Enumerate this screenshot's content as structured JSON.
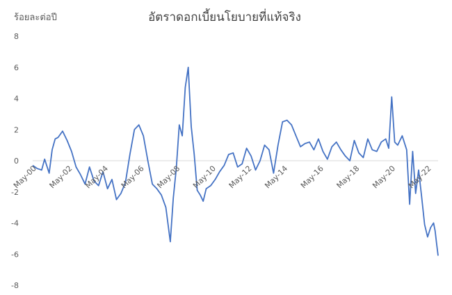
{
  "chart_data": {
    "type": "line",
    "title": "อัตราดอกเบี้ยนโยบายที่แท้จริง",
    "ylabel": "ร้อยละต่อปี",
    "xlabel": "",
    "ylim": [
      -8,
      8
    ],
    "yticks": [
      -8,
      -6,
      -4,
      -2,
      0,
      2,
      4,
      6,
      8
    ],
    "xlim": [
      "2000-05",
      "2022-12"
    ],
    "xticks": [
      "May-00",
      "May-02",
      "May-04",
      "May-06",
      "May-08",
      "May-10",
      "May-12",
      "May-14",
      "May-16",
      "May-18",
      "May-20",
      "May-22"
    ],
    "grid": false,
    "legend": "none",
    "series": [
      {
        "color": "#4472C4",
        "x": [
          "2000-05",
          "2000-08",
          "2000-11",
          "2001-01",
          "2001-04",
          "2001-06",
          "2001-08",
          "2001-10",
          "2002-01",
          "2002-04",
          "2002-07",
          "2002-10",
          "2003-01",
          "2003-04",
          "2003-07",
          "2003-10",
          "2004-01",
          "2004-04",
          "2004-07",
          "2004-10",
          "2005-01",
          "2005-04",
          "2005-07",
          "2005-10",
          "2006-01",
          "2006-04",
          "2006-07",
          "2006-10",
          "2007-01",
          "2007-04",
          "2007-07",
          "2007-10",
          "2008-01",
          "2008-03",
          "2008-05",
          "2008-07",
          "2008-09",
          "2008-11",
          "2009-01",
          "2009-03",
          "2009-05",
          "2009-07",
          "2009-09",
          "2009-11",
          "2010-01",
          "2010-04",
          "2010-07",
          "2010-10",
          "2011-01",
          "2011-04",
          "2011-07",
          "2011-10",
          "2012-01",
          "2012-04",
          "2012-07",
          "2012-10",
          "2013-01",
          "2013-04",
          "2013-07",
          "2013-10",
          "2014-01",
          "2014-04",
          "2014-07",
          "2014-10",
          "2015-01",
          "2015-04",
          "2015-07",
          "2015-10",
          "2016-01",
          "2016-04",
          "2016-07",
          "2016-10",
          "2017-01",
          "2017-04",
          "2017-07",
          "2017-10",
          "2018-01",
          "2018-04",
          "2018-07",
          "2018-10",
          "2019-01",
          "2019-04",
          "2019-07",
          "2019-10",
          "2020-01",
          "2020-03",
          "2020-05",
          "2020-07",
          "2020-09",
          "2020-12",
          "2021-03",
          "2021-05",
          "2021-07",
          "2021-09",
          "2021-11",
          "2022-01",
          "2022-03",
          "2022-05",
          "2022-07",
          "2022-09",
          "2022-10",
          "2022-11",
          "2022-12"
        ],
        "y": [
          -0.3,
          -0.5,
          -0.6,
          0.1,
          -0.8,
          0.7,
          1.4,
          1.5,
          1.9,
          1.3,
          0.6,
          -0.4,
          -0.9,
          -1.5,
          -0.4,
          -1.3,
          -1.6,
          -0.7,
          -1.8,
          -1.2,
          -2.5,
          -2.1,
          -1.4,
          0.4,
          2.0,
          2.3,
          1.6,
          0.0,
          -1.5,
          -1.8,
          -2.2,
          -3.0,
          -5.2,
          -2.4,
          -0.5,
          2.3,
          1.6,
          4.7,
          6.0,
          2.2,
          0.4,
          -1.9,
          -2.2,
          -2.6,
          -1.8,
          -1.6,
          -1.2,
          -0.7,
          -0.3,
          0.4,
          0.5,
          -0.4,
          -0.2,
          0.8,
          0.3,
          -0.6,
          0.0,
          1.0,
          0.7,
          -0.8,
          1.0,
          2.5,
          2.6,
          2.3,
          1.6,
          0.9,
          1.1,
          1.2,
          0.7,
          1.4,
          0.6,
          0.1,
          0.9,
          1.2,
          0.7,
          0.3,
          0.0,
          1.3,
          0.5,
          0.2,
          1.4,
          0.7,
          0.6,
          1.2,
          1.4,
          0.8,
          4.1,
          1.2,
          1.0,
          1.6,
          0.7,
          -2.8,
          0.6,
          -2.1,
          -0.6,
          -2.3,
          -4.1,
          -4.9,
          -4.3,
          -4.0,
          -4.5,
          -5.3,
          -6.1
        ]
      }
    ]
  }
}
